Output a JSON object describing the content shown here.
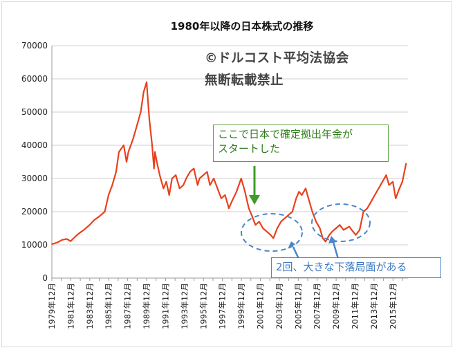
{
  "chart_data": {
    "type": "line",
    "title": "1980年以降の日本株式の推移",
    "xlabel": "",
    "ylabel": "",
    "ylim": [
      0,
      70000
    ],
    "y_ticks": [
      "0",
      "10000",
      "20000",
      "30000",
      "40000",
      "50000",
      "60000",
      "70000"
    ],
    "x_tick_labels": [
      "1979年12月",
      "1981年12月",
      "1983年12月",
      "1985年12月",
      "1987年12月",
      "1989年12月",
      "1991年12月",
      "1993年12月",
      "1995年12月",
      "1997年12月",
      "1999年12月",
      "2001年12月",
      "2003年12月",
      "2005年12月",
      "2007年12月",
      "2009年12月",
      "2011年12月",
      "2013年12月",
      "2015年12月"
    ],
    "x_range": [
      1979.92,
      2017.5
    ],
    "grid": true,
    "legend": "none",
    "series": [
      {
        "color": "#e8411d",
        "x": [
          1979.92,
          1980.5,
          1981.0,
          1981.5,
          1981.9,
          1982.4,
          1982.8,
          1983.3,
          1983.9,
          1984.4,
          1984.9,
          1985.5,
          1985.9,
          1986.3,
          1986.7,
          1987.0,
          1987.5,
          1987.8,
          1988.0,
          1988.5,
          1988.9,
          1989.3,
          1989.6,
          1989.92,
          1990.2,
          1990.5,
          1990.7,
          1990.8,
          1991.0,
          1991.3,
          1991.7,
          1992.0,
          1992.3,
          1992.6,
          1993.0,
          1993.4,
          1993.8,
          1994.1,
          1994.5,
          1994.9,
          1995.3,
          1995.5,
          1995.9,
          1996.3,
          1996.6,
          1997.0,
          1997.4,
          1997.8,
          1998.2,
          1998.6,
          1998.9,
          1999.4,
          1999.9,
          2000.3,
          2000.7,
          2001.0,
          2001.4,
          2001.8,
          2002.2,
          2002.6,
          2003.0,
          2003.3,
          2003.7,
          2004.1,
          2004.5,
          2004.9,
          2005.3,
          2005.7,
          2006.0,
          2006.3,
          2006.7,
          2007.0,
          2007.4,
          2007.8,
          2008.2,
          2008.5,
          2008.8,
          2009.2,
          2009.5,
          2009.9,
          2010.3,
          2010.7,
          2011.0,
          2011.3,
          2011.7,
          2012.0,
          2012.4,
          2012.8,
          2013.2,
          2013.6,
          2014.0,
          2014.4,
          2014.8,
          2015.2,
          2015.5,
          2015.9,
          2016.2,
          2016.6,
          2016.9,
          2017.3
        ],
        "y": [
          10200,
          10700,
          11500,
          11800,
          11100,
          12500,
          13500,
          14500,
          16000,
          17500,
          18500,
          20000,
          25000,
          28000,
          32000,
          38000,
          40000,
          35000,
          38000,
          42000,
          46000,
          50000,
          56000,
          59000,
          48000,
          40000,
          33000,
          38000,
          35000,
          31000,
          27000,
          29000,
          25000,
          30000,
          31000,
          27000,
          28000,
          30000,
          32000,
          33000,
          28000,
          30000,
          31000,
          32000,
          28000,
          30000,
          27000,
          24000,
          25000,
          21000,
          23000,
          26000,
          30000,
          26000,
          21000,
          19000,
          16000,
          17000,
          15000,
          14000,
          13000,
          12000,
          15000,
          17000,
          18000,
          19000,
          20000,
          24000,
          26000,
          25000,
          27000,
          24000,
          20000,
          17000,
          15000,
          12000,
          11000,
          13000,
          14000,
          15000,
          16000,
          14500,
          15000,
          15500,
          14000,
          13000,
          14500,
          20000,
          21000,
          23000,
          25000,
          27000,
          29000,
          31000,
          28000,
          29000,
          24000,
          27000,
          29000,
          34500
        ]
      }
    ],
    "watermark": [
      "©ドルコスト平均法協会",
      "無断転載禁止"
    ],
    "annotations": [
      {
        "id": "start",
        "lines": [
          "ここで日本で確定拠出年金が",
          "スタートした"
        ]
      },
      {
        "id": "dips",
        "lines": [
          "2回、大きな下落局面がある"
        ]
      }
    ]
  }
}
